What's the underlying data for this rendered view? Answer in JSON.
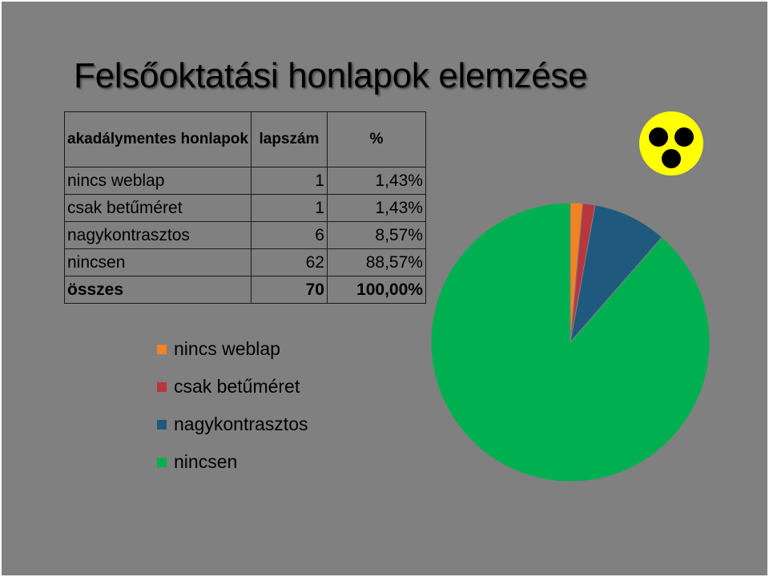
{
  "slide": {
    "title": "Felsőoktatási honlapok elemzése"
  },
  "table": {
    "headers": [
      "akadálymentes honlapok",
      "lapszám",
      "%"
    ],
    "rows": [
      {
        "label": "nincs weblap",
        "count": "1",
        "percent": "1,43%"
      },
      {
        "label": "csak betűméret",
        "count": "1",
        "percent": "1,43%"
      },
      {
        "label": "nagykontrasztos",
        "count": "6",
        "percent": "8,57%"
      },
      {
        "label": "nincsen",
        "count": "62",
        "percent": "88,57%"
      }
    ],
    "total": {
      "label": "összes",
      "count": "70",
      "percent": "100,00%"
    }
  },
  "chart_data": {
    "type": "pie",
    "categories": [
      "nincs weblap",
      "csak betűméret",
      "nagykontrasztos",
      "nincsen"
    ],
    "values": [
      1,
      1,
      6,
      62
    ],
    "colors": [
      "#f28322",
      "#b8363d",
      "#1f5a7e",
      "#00b050"
    ],
    "legend_position": "left"
  },
  "icon": {
    "name": "blind-sign-icon",
    "bg_color": "#ffff00",
    "dot_color": "#000000"
  },
  "colors": {
    "slide_bg": "#808080"
  }
}
